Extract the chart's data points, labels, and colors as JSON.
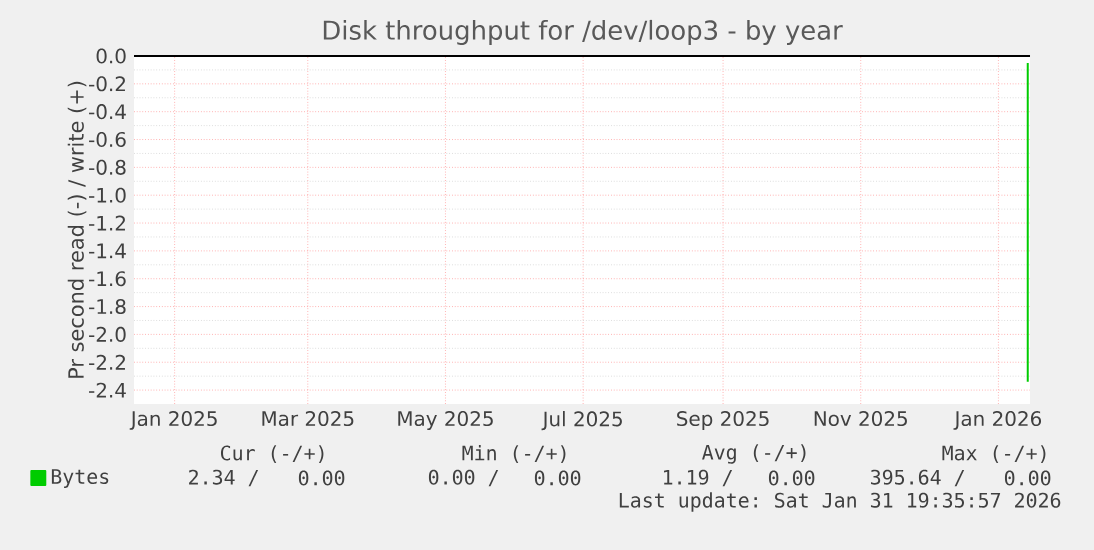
{
  "chart_data": {
    "type": "line",
    "title": "Disk throughput for /dev/loop3 - by year",
    "ylabel": "Pr second read (-) / write (+)",
    "xlim": [
      "2024-12-29",
      "2026-01-30"
    ],
    "xticks": [
      {
        "value": "2025-01-16",
        "label": "Jan 2025"
      },
      {
        "value": "2025-03-16",
        "label": "Mar 2025"
      },
      {
        "value": "2025-05-16",
        "label": "May 2025"
      },
      {
        "value": "2025-07-16",
        "label": "Jul 2025"
      },
      {
        "value": "2025-09-16",
        "label": "Sep 2025"
      },
      {
        "value": "2025-11-16",
        "label": "Nov 2025"
      },
      {
        "value": "2026-01-16",
        "label": "Jan 2026"
      }
    ],
    "ylim": [
      -2.5,
      0
    ],
    "yticks": [
      {
        "value": -2.4,
        "label": "-2.4"
      },
      {
        "value": -2.2,
        "label": "-2.2"
      },
      {
        "value": -2.0,
        "label": "-2.0"
      },
      {
        "value": -1.8,
        "label": "-1.8"
      },
      {
        "value": -1.6,
        "label": "-1.6"
      },
      {
        "value": -1.4,
        "label": "-1.4"
      },
      {
        "value": -1.2,
        "label": "-1.2"
      },
      {
        "value": -1.0,
        "label": "-1.0"
      },
      {
        "value": -0.8,
        "label": "-0.8"
      },
      {
        "value": -0.6,
        "label": "-0.6"
      },
      {
        "value": -0.4,
        "label": "-0.4"
      },
      {
        "value": -0.2,
        "label": "-0.2"
      },
      {
        "value": 0,
        "label": "0.0"
      }
    ],
    "grid": true,
    "legend": "bottom left",
    "marker": "none",
    "line_style": "solid",
    "series": [
      {
        "color": "#000000",
        "x": [
          "2024-12-29",
          "2026-01-30"
        ],
        "values": [
          0,
          0
        ]
      },
      {
        "name": "Bytes",
        "color": "#00cc00",
        "x": [
          "2026-01-29",
          "2026-01-29"
        ],
        "values": [
          -0.05,
          -2.34
        ]
      }
    ],
    "annotations": [
      "Cur (-/+)",
      "Min (-/+)",
      "Avg (-/+)",
      "Max (-/+)",
      "2.34 /",
      "0.00",
      "0.00 /",
      "0.00",
      "1.19 /",
      "0.00",
      "395.64 /",
      "0.00",
      "Last update: Sat Jan 31 19:35:57 2026"
    ]
  }
}
